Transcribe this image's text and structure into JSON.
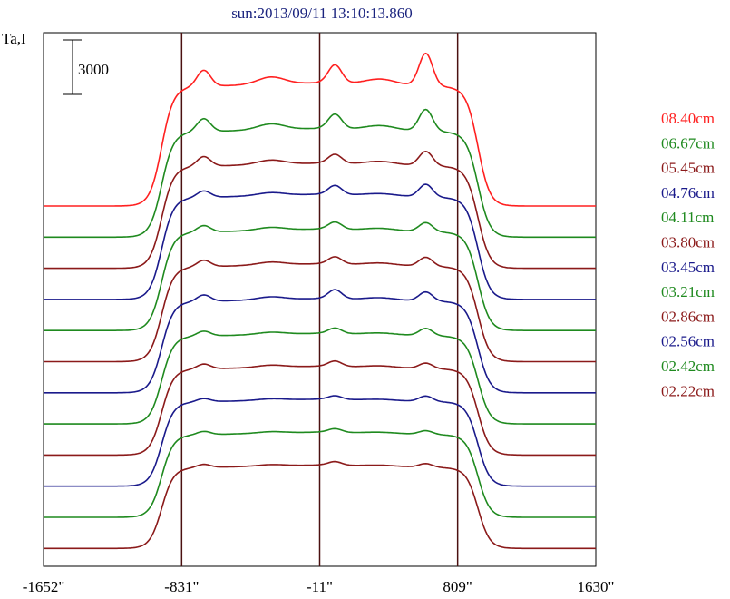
{
  "title": "sun:2013/09/11 13:10:13.860",
  "y_axis_label": "Ta,I",
  "scale_bar_label": "3000",
  "chart_data": {
    "type": "line",
    "title": "sun:2013/09/11 13:10:13.860",
    "xlabel": "",
    "ylabel": "Ta,I",
    "x_tick_labels": [
      "-1652\"",
      "-831\"",
      "-11\"",
      "809\"",
      "1630\""
    ],
    "x_ticks": [
      -1652,
      -831,
      -11,
      809,
      1630
    ],
    "xlim": [
      -1652,
      1630
    ],
    "vertical_lines": [
      -831,
      -11,
      809
    ],
    "scale_bar_value": 3000,
    "grid": false,
    "legend_position": "right",
    "series": [
      {
        "name": "08.40cm",
        "color": "#ff2020",
        "baseline": 0,
        "disk_level": 6800,
        "limb_peak": 7800,
        "center_peak": 7800,
        "right_peak": 8600
      },
      {
        "name": "06.67cm",
        "color": "#1f8a1f",
        "baseline": 0,
        "disk_level": 6000,
        "limb_peak": 6800,
        "center_peak": 6800,
        "right_peak": 7200
      },
      {
        "name": "05.45cm",
        "color": "#8b1a1a",
        "baseline": 0,
        "disk_level": 5800,
        "limb_peak": 6400,
        "center_peak": 6300,
        "right_peak": 6600
      },
      {
        "name": "04.76cm",
        "color": "#1a1a8b",
        "baseline": 0,
        "disk_level": 5800,
        "limb_peak": 6200,
        "center_peak": 6300,
        "right_peak": 6500
      },
      {
        "name": "04.11cm",
        "color": "#1f8a1f",
        "baseline": 0,
        "disk_level": 5600,
        "limb_peak": 6000,
        "center_peak": 6000,
        "right_peak": 6100
      },
      {
        "name": "03.80cm",
        "color": "#8b1a1a",
        "baseline": 0,
        "disk_level": 5400,
        "limb_peak": 5800,
        "center_peak": 5800,
        "right_peak": 5900
      },
      {
        "name": "03.45cm",
        "color": "#1a1a8b",
        "baseline": 0,
        "disk_level": 5200,
        "limb_peak": 5600,
        "center_peak": 5700,
        "right_peak": 5700
      },
      {
        "name": "03.21cm",
        "color": "#1f8a1f",
        "baseline": 0,
        "disk_level": 5000,
        "limb_peak": 5300,
        "center_peak": 5300,
        "right_peak": 5400
      },
      {
        "name": "02.86cm",
        "color": "#8b1a1a",
        "baseline": 0,
        "disk_level": 4900,
        "limb_peak": 5200,
        "center_peak": 5200,
        "right_peak": 5200
      },
      {
        "name": "02.56cm",
        "color": "#1a1a8b",
        "baseline": 0,
        "disk_level": 4800,
        "limb_peak": 5000,
        "center_peak": 5000,
        "right_peak": 5100
      },
      {
        "name": "02.42cm",
        "color": "#1f8a1f",
        "baseline": 0,
        "disk_level": 4700,
        "limb_peak": 4900,
        "center_peak": 4900,
        "right_peak": 4900
      },
      {
        "name": "02.22cm",
        "color": "#8b1a1a",
        "baseline": 0,
        "disk_level": 4600,
        "limb_peak": 4800,
        "center_peak": 4800,
        "right_peak": 4800
      }
    ]
  }
}
